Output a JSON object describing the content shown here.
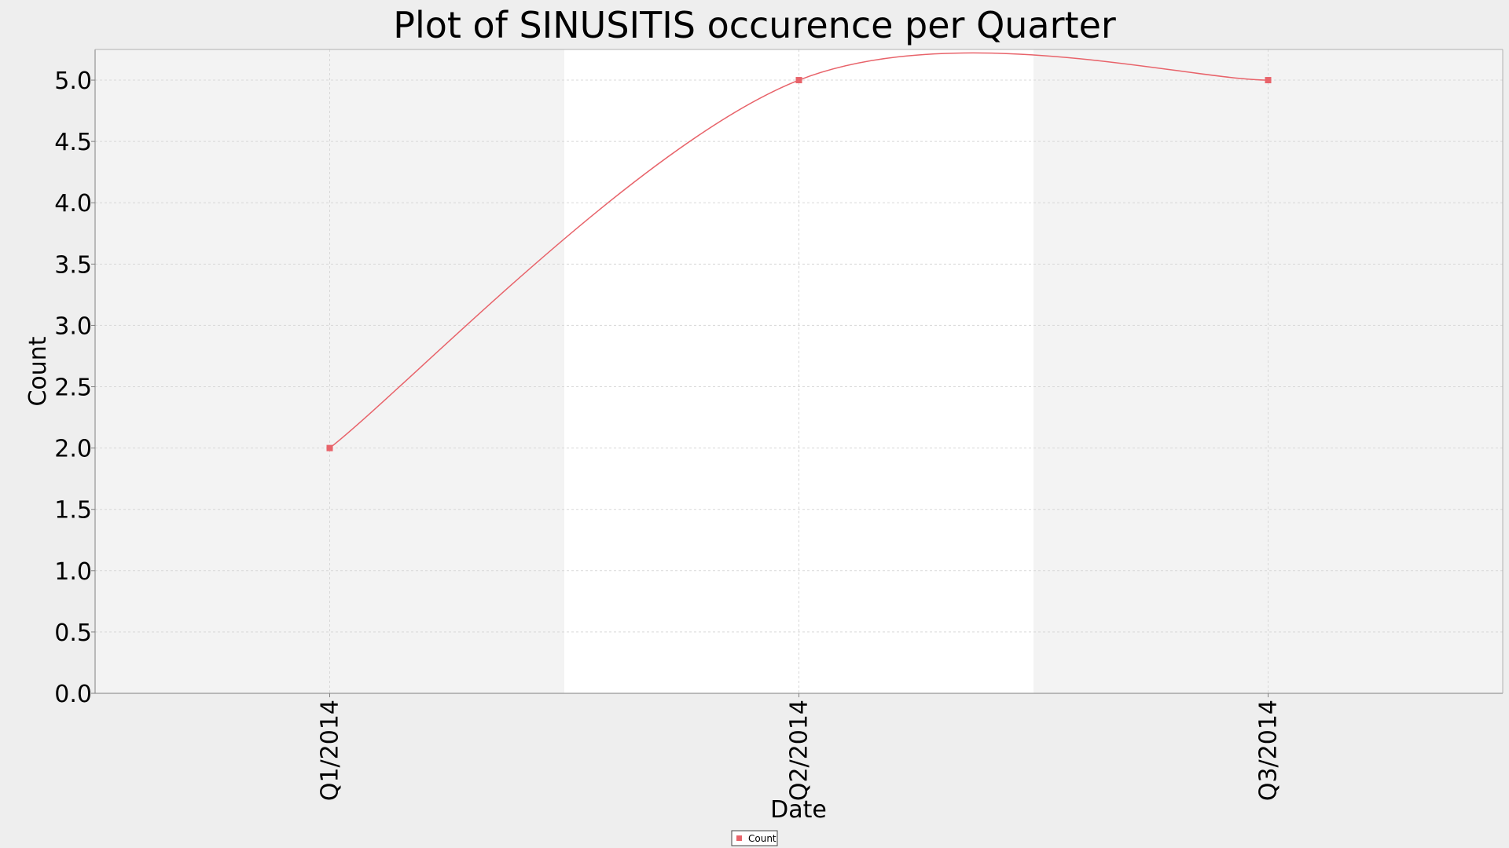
{
  "chart_data": {
    "type": "line",
    "title": "Plot of SINUSITIS occurence per Quarter",
    "xlabel": "Date",
    "ylabel": "Count",
    "categories": [
      "Q1/2014",
      "Q2/2014",
      "Q3/2014"
    ],
    "series": [
      {
        "name": "Count",
        "values": [
          2.0,
          5.0,
          5.0
        ],
        "color": "#e8636a",
        "smooth": true
      }
    ],
    "ylim": [
      0.0,
      5.25
    ],
    "yticks": [
      "0.0",
      "0.5",
      "1.0",
      "1.5",
      "2.0",
      "2.5",
      "3.0",
      "3.5",
      "4.0",
      "4.5",
      "5.0"
    ],
    "grid": true,
    "legend_position": "bottom-center",
    "colors": {
      "page_background": "#eeeeee",
      "band_shaded": "#f3f3f3",
      "band_light": "#ffffff",
      "series": "#e8636a"
    }
  }
}
